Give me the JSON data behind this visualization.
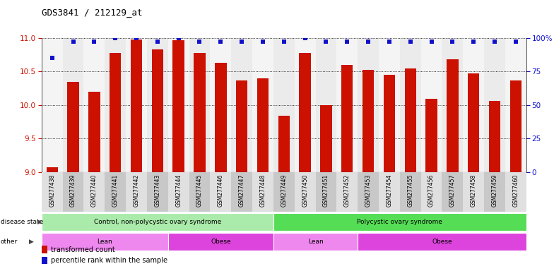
{
  "title": "GDS3841 / 212129_at",
  "samples": [
    "GSM277438",
    "GSM277439",
    "GSM277440",
    "GSM277441",
    "GSM277442",
    "GSM277443",
    "GSM277444",
    "GSM277445",
    "GSM277446",
    "GSM277447",
    "GSM277448",
    "GSM277449",
    "GSM277450",
    "GSM277451",
    "GSM277452",
    "GSM277453",
    "GSM277454",
    "GSM277455",
    "GSM277456",
    "GSM277457",
    "GSM277458",
    "GSM277459",
    "GSM277460"
  ],
  "transformed_count": [
    9.07,
    10.35,
    10.2,
    10.78,
    10.98,
    10.83,
    10.97,
    10.78,
    10.63,
    10.37,
    10.4,
    9.84,
    10.78,
    10.0,
    10.6,
    10.52,
    10.45,
    10.55,
    10.09,
    10.68,
    10.47,
    10.06,
    10.37
  ],
  "percentile": [
    85,
    97,
    97,
    100,
    100,
    97,
    100,
    97,
    97,
    97,
    97,
    97,
    100,
    97,
    97,
    97,
    97,
    97,
    97,
    97,
    97,
    97,
    97
  ],
  "ylim_left": [
    9.0,
    11.0
  ],
  "ylim_right": [
    0,
    100
  ],
  "yticks_left": [
    9.0,
    9.5,
    10.0,
    10.5,
    11.0
  ],
  "yticks_right_vals": [
    0,
    25,
    50,
    75,
    100
  ],
  "yticks_right_labels": [
    "0",
    "25",
    "50",
    "75",
    "100%"
  ],
  "bar_color": "#cc1100",
  "dot_color": "#1111cc",
  "disease_state_groups": [
    {
      "label": "Control, non-polycystic ovary syndrome",
      "start": 0,
      "end": 11,
      "color": "#aaeaaa"
    },
    {
      "label": "Polycystic ovary syndrome",
      "start": 11,
      "end": 23,
      "color": "#55dd55"
    }
  ],
  "other_groups": [
    {
      "label": "Lean",
      "start": 0,
      "end": 6,
      "color": "#ee88ee"
    },
    {
      "label": "Obese",
      "start": 6,
      "end": 11,
      "color": "#dd44dd"
    },
    {
      "label": "Lean",
      "start": 11,
      "end": 15,
      "color": "#ee88ee"
    },
    {
      "label": "Obese",
      "start": 15,
      "end": 23,
      "color": "#dd44dd"
    }
  ],
  "fig_bg": "#ffffff",
  "xtick_bg_light": "#e0e0e0",
  "xtick_bg_dark": "#c8c8c8"
}
